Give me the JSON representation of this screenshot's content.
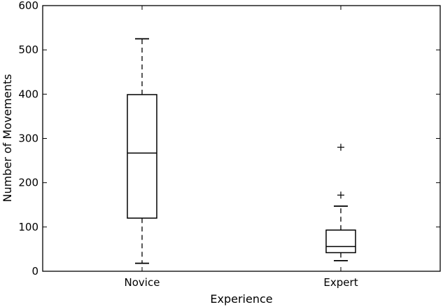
{
  "chart_data": {
    "type": "box",
    "title": "",
    "xlabel": "Experience",
    "ylabel": "Number of Movements",
    "ylim": [
      0,
      600
    ],
    "yticks": [
      0,
      100,
      200,
      300,
      400,
      500,
      600
    ],
    "grid": false,
    "categories": [
      "Novice",
      "Expert"
    ],
    "boxes": [
      {
        "category": "Novice",
        "whisker_low": 18,
        "q1": 120,
        "median": 267,
        "q3": 399,
        "whisker_high": 525,
        "outliers": []
      },
      {
        "category": "Expert",
        "whisker_low": 24,
        "q1": 42,
        "median": 56,
        "q3": 93,
        "whisker_high": 147,
        "outliers": [
          172,
          280
        ]
      }
    ]
  }
}
